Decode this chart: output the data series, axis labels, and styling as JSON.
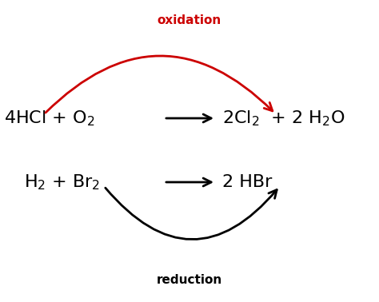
{
  "background_color": "#ffffff",
  "oxidation_label": "oxidation",
  "reduction_label": "reduction",
  "oxidation_color": "#cc0000",
  "reduction_color": "#000000",
  "text_color": "#000000",
  "label_fontsize": 11,
  "eq_fontsize": 16
}
